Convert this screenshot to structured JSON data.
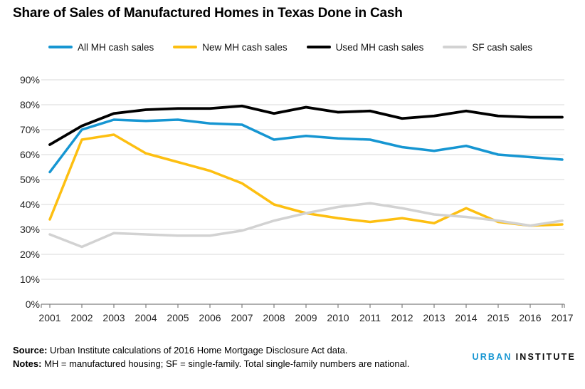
{
  "title": "Share of Sales of Manufactured Homes in Texas Done in Cash",
  "colors": {
    "accent_blue": "#1696d2",
    "accent_yellow": "#fdbf11",
    "accent_black": "#000000",
    "accent_gray": "#d2d2d2",
    "gridline": "#d9d9d9",
    "axis": "#7f7f7f",
    "axis_text": "#262626"
  },
  "chart_data": {
    "type": "line",
    "title": "Share of Sales of Manufactured Homes in Texas Done in Cash",
    "x": [
      "2001",
      "2002",
      "2003",
      "2004",
      "2005",
      "2006",
      "2007",
      "2008",
      "2009",
      "2010",
      "2011",
      "2012",
      "2013",
      "2014",
      "2015",
      "2016",
      "2017"
    ],
    "series": [
      {
        "name": "All MH cash sales",
        "color": "#1696d2",
        "width": 3.5,
        "values": [
          53,
          70,
          74,
          73.5,
          74,
          72.5,
          72,
          66,
          67.5,
          66.5,
          66,
          63,
          61.5,
          63.5,
          60,
          59,
          58
        ]
      },
      {
        "name": "New MH cash sales",
        "color": "#fdbf11",
        "width": 3.5,
        "values": [
          34,
          66,
          68,
          60.5,
          57,
          53.5,
          48.5,
          40,
          36.5,
          34.5,
          33,
          34.5,
          32.5,
          38.5,
          33,
          31.5,
          32
        ]
      },
      {
        "name": "Used MH cash sales",
        "color": "#000000",
        "width": 3.8,
        "values": [
          64,
          71.5,
          76.5,
          78,
          78.5,
          78.5,
          79.5,
          76.5,
          79,
          77,
          77.5,
          74.5,
          75.5,
          77.5,
          75.5,
          75,
          75
        ]
      },
      {
        "name": "SF cash sales",
        "color": "#d2d2d2",
        "width": 3.5,
        "values": [
          28,
          23,
          28.5,
          28,
          27.5,
          27.5,
          29.5,
          33.5,
          36.5,
          39,
          40.5,
          38.5,
          36,
          35,
          33.5,
          31.5,
          33.5
        ]
      }
    ],
    "ylim": [
      0,
      90
    ],
    "ytick_step": 10,
    "ytick_suffix": "%",
    "xlabel": "",
    "ylabel": "",
    "grid": true,
    "legend_position": "top"
  },
  "footer": {
    "source_label": "Source:",
    "source_text": " Urban Institute calculations of 2016 Home Mortgage Disclosure Act data.",
    "notes_label": "Notes:",
    "notes_text": " MH = manufactured housing; SF = single-family. Total single-family numbers are national."
  },
  "logo": {
    "part1": "URBAN",
    "part2": "INSTITUTE"
  }
}
